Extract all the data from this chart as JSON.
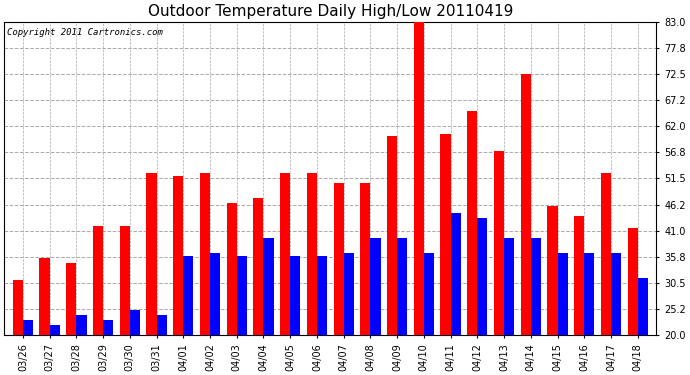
{
  "title": "Outdoor Temperature Daily High/Low 20110419",
  "copyright": "Copyright 2011 Cartronics.com",
  "dates": [
    "03/26",
    "03/27",
    "03/28",
    "03/29",
    "03/30",
    "03/31",
    "04/01",
    "04/02",
    "04/03",
    "04/04",
    "04/05",
    "04/06",
    "04/07",
    "04/08",
    "04/09",
    "04/10",
    "04/11",
    "04/12",
    "04/13",
    "04/14",
    "04/15",
    "04/16",
    "04/17",
    "04/18"
  ],
  "highs": [
    31.0,
    35.5,
    34.5,
    42.0,
    42.0,
    52.5,
    52.0,
    52.5,
    46.5,
    47.5,
    52.5,
    52.5,
    50.5,
    50.5,
    60.0,
    83.0,
    60.5,
    65.0,
    57.0,
    72.5,
    46.0,
    44.0,
    52.5,
    41.5
  ],
  "lows": [
    23.0,
    22.0,
    24.0,
    23.0,
    25.0,
    24.0,
    36.0,
    36.5,
    36.0,
    39.5,
    36.0,
    36.0,
    36.5,
    39.5,
    39.5,
    36.5,
    44.5,
    43.5,
    39.5,
    39.5,
    36.5,
    36.5,
    36.5,
    31.5
  ],
  "high_color": "#FF0000",
  "low_color": "#0000FF",
  "bg_color": "#FFFFFF",
  "plot_bg_color": "#FFFFFF",
  "grid_color": "#AAAAAA",
  "ymin": 20.0,
  "ymax": 83.0,
  "yticks": [
    20.0,
    25.2,
    30.5,
    35.8,
    41.0,
    46.2,
    51.5,
    56.8,
    62.0,
    67.2,
    72.5,
    77.8,
    83.0
  ],
  "bar_width": 0.38,
  "title_fontsize": 11,
  "tick_fontsize": 7,
  "copyright_fontsize": 6.5
}
